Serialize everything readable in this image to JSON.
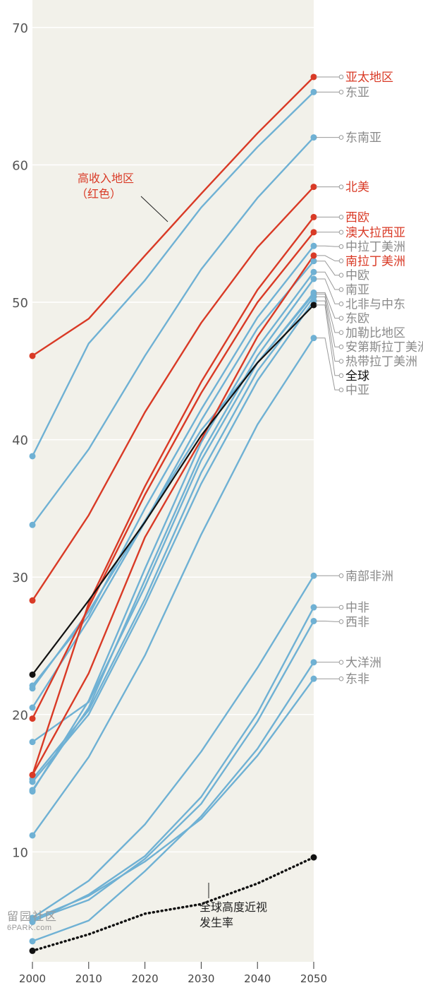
{
  "chart_data": {
    "type": "line",
    "x": [
      2000,
      2010,
      2020,
      2030,
      2040,
      2050
    ],
    "ylim": [
      2,
      72
    ],
    "y_ticks": [
      10,
      20,
      30,
      40,
      50,
      60,
      70
    ],
    "grid": true,
    "annotations": {
      "high_income": [
        "高收入地区",
        "（红色）"
      ],
      "high_myopia": [
        "全球高度近视",
        "发生率"
      ]
    },
    "colors": {
      "high_income": "#d93a26",
      "other": "#6fb1d4",
      "global": "#111111",
      "plot_bg": "#f2f1ea"
    },
    "series": [
      {
        "name": "亚太地区",
        "group": "high_income",
        "values": [
          46.1,
          48.8,
          53.4,
          57.9,
          62.3,
          66.4
        ]
      },
      {
        "name": "东亚",
        "group": "other",
        "values": [
          38.8,
          47.0,
          51.6,
          56.9,
          61.3,
          65.3
        ]
      },
      {
        "name": "东南亚",
        "group": "other",
        "values": [
          33.8,
          39.3,
          46.1,
          52.4,
          57.6,
          62.0
        ]
      },
      {
        "name": "北美",
        "group": "high_income",
        "values": [
          28.3,
          34.5,
          42.0,
          48.5,
          54.0,
          58.4
        ]
      },
      {
        "name": "西欧",
        "group": "high_income",
        "values": [
          15.6,
          28.1,
          36.6,
          44.2,
          50.9,
          56.2
        ]
      },
      {
        "name": "澳大拉西亚",
        "group": "high_income",
        "values": [
          19.7,
          27.8,
          36.0,
          43.4,
          50.0,
          55.1
        ]
      },
      {
        "name": "中拉丁美洲",
        "group": "other",
        "values": [
          22.1,
          27.2,
          35.0,
          42.2,
          48.9,
          54.1
        ]
      },
      {
        "name": "中欧",
        "group": "other",
        "values": [
          20.5,
          26.9,
          34.0,
          41.4,
          48.1,
          53.0
        ]
      },
      {
        "name": "南拉丁美洲",
        "group": "high_income",
        "values": [
          15.6,
          23.0,
          32.9,
          40.0,
          47.5,
          53.4
        ]
      },
      {
        "name": "南亚",
        "group": "other",
        "values": [
          14.4,
          21.0,
          30.6,
          39.8,
          46.7,
          52.2
        ]
      },
      {
        "name": "北非与中东",
        "group": "other",
        "values": [
          14.5,
          20.5,
          29.8,
          39.0,
          46.1,
          51.7
        ]
      },
      {
        "name": "加勒比地区",
        "group": "other",
        "values": [
          18.0,
          20.9,
          29.3,
          38.5,
          45.6,
          50.6
        ]
      },
      {
        "name": "安第斯拉丁美洲",
        "group": "other",
        "values": [
          15.3,
          20.3,
          28.4,
          37.6,
          45.0,
          50.4
        ]
      },
      {
        "name": "热带拉丁美洲",
        "group": "other",
        "values": [
          15.1,
          20.0,
          28.0,
          36.8,
          44.3,
          50.1
        ]
      },
      {
        "name": "东欧",
        "group": "other",
        "values": [
          21.9,
          27.5,
          34.1,
          40.7,
          45.6,
          50.7
        ]
      },
      {
        "name": "全球",
        "group": "global",
        "values": [
          22.9,
          28.3,
          34.0,
          40.3,
          45.6,
          49.8
        ]
      },
      {
        "name": "中亚",
        "group": "other",
        "values": [
          11.2,
          16.9,
          24.3,
          33.1,
          41.1,
          47.4
        ]
      },
      {
        "name": "南部非洲",
        "group": "other",
        "values": [
          5.2,
          7.9,
          12.0,
          17.3,
          23.4,
          30.1
        ]
      },
      {
        "name": "中非",
        "group": "other",
        "values": [
          4.9,
          6.9,
          9.7,
          14.0,
          20.1,
          27.8
        ]
      },
      {
        "name": "西非",
        "group": "other",
        "values": [
          5.0,
          6.5,
          9.5,
          13.5,
          19.5,
          26.8
        ]
      },
      {
        "name": "大洋洲",
        "group": "other",
        "values": [
          3.5,
          5.0,
          8.6,
          12.6,
          17.5,
          23.8
        ]
      },
      {
        "name": "东非",
        "group": "other",
        "values": [
          5.1,
          6.8,
          9.3,
          12.4,
          17.0,
          22.6
        ]
      },
      {
        "name": "全球高度近视发生率",
        "group": "global_high",
        "values": [
          2.8,
          4.0,
          5.5,
          6.2,
          7.7,
          9.6
        ]
      }
    ]
  },
  "watermark": {
    "cn": "留园社区",
    "en": "6PARK.com"
  }
}
